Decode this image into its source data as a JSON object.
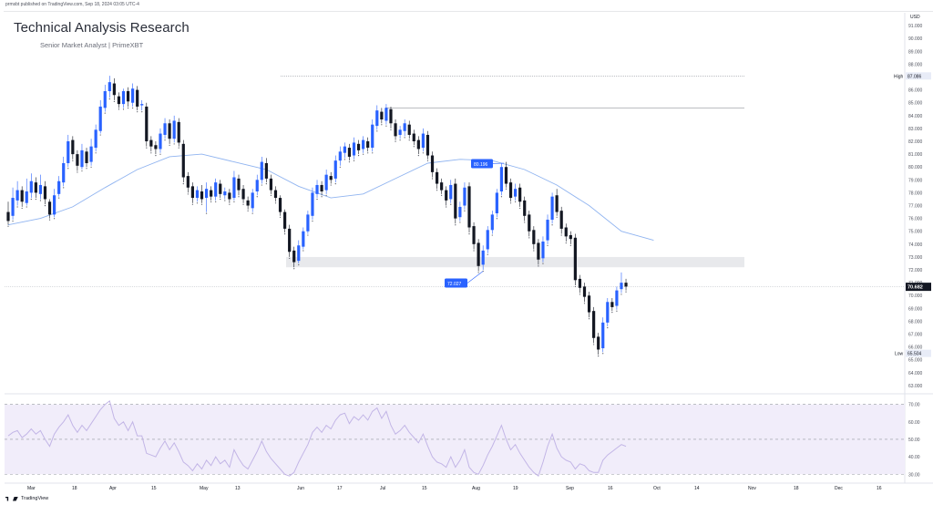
{
  "header": {
    "published": "prmsbt published on TradingView.com, Sep 18, 2024 03:05 UTC-4",
    "title": "Technical Analysis Research",
    "subtitle": "Senior Market Analyst | PrimeXBT",
    "currency": "USD"
  },
  "footer": {
    "brand": "TradingView"
  },
  "colors": {
    "bull": "#2962ff",
    "bear": "#131722",
    "ma": "#90b4f0",
    "rsi": "#c2b5e6",
    "rsi_band": "#f1edfa",
    "zone": "#e8e9ec",
    "label_bg": "#2962ff"
  },
  "chart_data": {
    "type": "candlestick",
    "price_axis": {
      "ticks": [
        "91.000",
        "90.000",
        "89.000",
        "88.000",
        "87.000",
        "86.000",
        "85.000",
        "84.000",
        "83.000",
        "82.000",
        "81.000",
        "80.000",
        "79.000",
        "78.000",
        "77.000",
        "76.000",
        "75.000",
        "74.000",
        "73.000",
        "72.000",
        "71.000",
        "70.000",
        "69.000",
        "68.000",
        "67.000",
        "66.000",
        "65.000",
        "64.000",
        "63.000"
      ],
      "ylim": [
        62.5,
        92.0
      ]
    },
    "time_axis": {
      "labels": [
        "Mar",
        "18",
        "Apr",
        "15",
        "May",
        "13",
        "Jun",
        "17",
        "Jul",
        "15",
        "Aug",
        "19",
        "Sep",
        "16",
        "Oct",
        "14",
        "Nov",
        "18",
        "Dec",
        "16"
      ]
    },
    "levels": {
      "high": {
        "label": "High",
        "value": "87.086",
        "price": 87.086
      },
      "low": {
        "label": "Low",
        "value": "65.504",
        "price": 65.504
      },
      "current": {
        "value": "70.682",
        "price": 70.682
      },
      "resistance": 84.6
    },
    "zone": {
      "from": 72.2,
      "to": 73.0
    },
    "annotations": [
      {
        "text": "80.196",
        "price": 80.196
      },
      {
        "text": "72.027",
        "price": 72.027
      }
    ],
    "candles": [
      [
        0,
        76.5,
        75.8,
        77.3,
        75.5
      ],
      [
        1,
        76.2,
        77.6,
        78.4,
        75.9
      ],
      [
        2,
        77.4,
        78.2,
        78.9,
        77.0
      ],
      [
        3,
        78.2,
        77.3,
        78.5,
        76.9
      ],
      [
        4,
        77.2,
        78.1,
        79.1,
        77.0
      ],
      [
        5,
        78.0,
        78.9,
        79.5,
        77.6
      ],
      [
        6,
        78.8,
        78.0,
        79.2,
        77.6
      ],
      [
        7,
        77.9,
        78.6,
        79.4,
        77.5
      ],
      [
        8,
        78.5,
        77.5,
        78.9,
        77.1
      ],
      [
        9,
        77.3,
        76.3,
        77.5,
        76.0
      ],
      [
        10,
        76.3,
        77.8,
        78.3,
        76.1
      ],
      [
        11,
        77.9,
        78.9,
        79.3,
        77.7
      ],
      [
        12,
        78.8,
        80.3,
        80.8,
        78.5
      ],
      [
        13,
        80.3,
        82.0,
        82.5,
        80.0
      ],
      [
        14,
        82.1,
        81.0,
        82.4,
        80.6
      ],
      [
        15,
        81.0,
        80.1,
        81.3,
        79.7
      ],
      [
        16,
        80.0,
        81.3,
        81.8,
        79.8
      ],
      [
        17,
        81.2,
        80.3,
        81.5,
        80.0
      ],
      [
        18,
        80.4,
        81.6,
        82.2,
        80.1
      ],
      [
        19,
        81.5,
        82.9,
        83.3,
        81.2
      ],
      [
        20,
        82.8,
        84.7,
        85.2,
        82.6
      ],
      [
        21,
        84.6,
        85.9,
        86.4,
        84.3
      ],
      [
        22,
        85.9,
        86.6,
        87.1,
        85.4
      ],
      [
        23,
        86.5,
        85.6,
        86.9,
        85.2
      ],
      [
        24,
        85.5,
        84.9,
        85.8,
        84.6
      ],
      [
        25,
        84.9,
        85.9,
        86.1,
        84.6
      ],
      [
        26,
        85.9,
        85.1,
        86.2,
        84.7
      ],
      [
        27,
        85.0,
        86.1,
        86.5,
        84.7
      ],
      [
        28,
        86.0,
        84.7,
        86.3,
        84.4
      ],
      [
        29,
        84.8,
        84.9,
        85.2,
        84.4
      ],
      [
        30,
        84.7,
        82.0,
        85.0,
        81.6
      ],
      [
        31,
        82.1,
        81.6,
        82.4,
        81.2
      ],
      [
        32,
        81.7,
        81.4,
        82.0,
        81.0
      ],
      [
        33,
        81.4,
        82.6,
        83.0,
        81.1
      ],
      [
        34,
        82.5,
        83.4,
        83.8,
        82.2
      ],
      [
        35,
        83.4,
        82.2,
        83.7,
        81.8
      ],
      [
        36,
        82.2,
        83.6,
        84.0,
        81.9
      ],
      [
        37,
        83.5,
        81.9,
        83.8,
        81.6
      ],
      [
        38,
        81.8,
        79.2,
        82.1,
        78.8
      ],
      [
        39,
        79.3,
        78.4,
        79.6,
        78.0
      ],
      [
        40,
        78.5,
        77.6,
        78.8,
        77.2
      ],
      [
        41,
        77.6,
        78.2,
        78.5,
        77.3
      ],
      [
        42,
        78.1,
        77.5,
        78.6,
        77.2
      ],
      [
        43,
        77.6,
        78.3,
        78.8,
        76.5
      ],
      [
        44,
        78.2,
        77.7,
        78.5,
        77.4
      ],
      [
        45,
        77.7,
        78.8,
        79.1,
        77.4
      ],
      [
        46,
        78.7,
        77.9,
        79.0,
        77.6
      ],
      [
        47,
        77.8,
        78.1,
        78.4,
        77.5
      ],
      [
        48,
        78.0,
        77.5,
        78.3,
        77.2
      ],
      [
        49,
        77.6,
        79.2,
        79.7,
        77.4
      ],
      [
        50,
        79.1,
        78.2,
        79.4,
        77.8
      ],
      [
        51,
        78.3,
        77.5,
        78.6,
        77.2
      ],
      [
        52,
        77.4,
        77.0,
        77.7,
        76.7
      ],
      [
        53,
        76.8,
        78.0,
        78.3,
        76.5
      ],
      [
        54,
        78.1,
        79.0,
        79.4,
        77.8
      ],
      [
        55,
        79.0,
        80.4,
        80.8,
        78.7
      ],
      [
        56,
        80.3,
        79.1,
        80.7,
        78.8
      ],
      [
        57,
        79.1,
        78.2,
        79.4,
        77.9
      ],
      [
        58,
        78.2,
        77.6,
        78.5,
        77.3
      ],
      [
        59,
        77.6,
        76.5,
        77.8,
        76.2
      ],
      [
        60,
        76.5,
        75.2,
        76.7,
        74.9
      ],
      [
        61,
        75.2,
        73.4,
        75.5,
        73.0
      ],
      [
        62,
        73.5,
        72.6,
        73.8,
        72.2
      ],
      [
        63,
        72.7,
        73.9,
        74.3,
        72.5
      ],
      [
        64,
        73.8,
        75.0,
        75.3,
        73.6
      ],
      [
        65,
        75.0,
        76.3,
        76.6,
        74.8
      ],
      [
        66,
        76.2,
        78.0,
        78.4,
        75.9
      ],
      [
        67,
        77.9,
        78.6,
        79.0,
        77.6
      ],
      [
        68,
        78.6,
        78.1,
        78.9,
        77.8
      ],
      [
        69,
        78.2,
        79.4,
        79.8,
        77.9
      ],
      [
        70,
        79.3,
        79.0,
        79.6,
        78.7
      ],
      [
        71,
        79.1,
        80.5,
        80.9,
        78.8
      ],
      [
        72,
        80.5,
        81.2,
        81.6,
        80.1
      ],
      [
        73,
        81.1,
        81.6,
        81.9,
        80.7
      ],
      [
        74,
        81.5,
        80.8,
        81.8,
        80.5
      ],
      [
        75,
        80.9,
        81.9,
        82.3,
        80.6
      ],
      [
        76,
        81.8,
        81.3,
        82.1,
        81.0
      ],
      [
        77,
        81.4,
        82.1,
        82.4,
        81.1
      ],
      [
        78,
        82.0,
        81.5,
        82.3,
        81.2
      ],
      [
        79,
        81.5,
        83.3,
        83.7,
        81.2
      ],
      [
        80,
        83.2,
        84.4,
        84.8,
        82.9
      ],
      [
        81,
        84.3,
        83.7,
        84.6,
        83.4
      ],
      [
        82,
        83.6,
        84.6,
        84.9,
        83.3
      ],
      [
        83,
        84.5,
        83.4,
        84.7,
        83.0
      ],
      [
        84,
        83.4,
        82.4,
        83.7,
        82.1
      ],
      [
        85,
        82.5,
        82.9,
        83.2,
        82.2
      ],
      [
        86,
        82.8,
        83.4,
        83.7,
        82.4
      ],
      [
        87,
        83.3,
        82.5,
        83.6,
        82.2
      ],
      [
        88,
        82.6,
        82.0,
        82.9,
        81.7
      ],
      [
        89,
        82.1,
        81.4,
        82.4,
        81.0
      ],
      [
        90,
        81.5,
        82.6,
        83.0,
        81.2
      ],
      [
        91,
        82.5,
        80.9,
        82.8,
        80.6
      ],
      [
        92,
        80.9,
        79.6,
        81.2,
        79.2
      ],
      [
        93,
        79.6,
        78.7,
        79.9,
        78.3
      ],
      [
        94,
        78.8,
        78.2,
        79.1,
        77.9
      ],
      [
        95,
        78.2,
        77.4,
        78.5,
        77.0
      ],
      [
        96,
        77.5,
        78.6,
        79.0,
        77.2
      ],
      [
        97,
        78.7,
        76.0,
        79.1,
        75.6
      ],
      [
        98,
        76.1,
        76.9,
        77.3,
        75.8
      ],
      [
        99,
        77.0,
        78.4,
        78.8,
        76.7
      ],
      [
        100,
        78.5,
        75.3,
        78.8,
        74.9
      ],
      [
        101,
        75.4,
        74.0,
        75.7,
        73.6
      ],
      [
        102,
        74.1,
        72.3,
        74.4,
        71.9
      ],
      [
        103,
        72.4,
        73.5,
        73.9,
        72.0
      ],
      [
        104,
        73.6,
        75.1,
        75.4,
        73.3
      ],
      [
        105,
        75.1,
        76.3,
        76.6,
        74.8
      ],
      [
        106,
        76.4,
        78.0,
        78.3,
        76.1
      ],
      [
        107,
        78.1,
        80.0,
        80.3,
        77.8
      ],
      [
        108,
        80.0,
        78.7,
        80.4,
        78.4
      ],
      [
        109,
        78.8,
        77.6,
        79.1,
        77.3
      ],
      [
        110,
        77.7,
        78.3,
        78.7,
        77.4
      ],
      [
        111,
        78.4,
        77.3,
        78.7,
        76.9
      ],
      [
        112,
        77.4,
        76.2,
        77.7,
        75.8
      ],
      [
        113,
        76.3,
        75.0,
        76.6,
        74.6
      ],
      [
        114,
        75.1,
        74.0,
        75.4,
        73.6
      ],
      [
        115,
        74.1,
        72.8,
        74.4,
        72.4
      ],
      [
        116,
        72.9,
        74.2,
        74.6,
        72.6
      ],
      [
        117,
        74.3,
        75.9,
        76.3,
        74.0
      ],
      [
        118,
        75.9,
        77.7,
        78.0,
        75.6
      ],
      [
        119,
        77.8,
        76.5,
        78.3,
        76.2
      ],
      [
        120,
        76.6,
        75.2,
        76.9,
        74.8
      ],
      [
        121,
        75.3,
        74.6,
        75.6,
        74.2
      ],
      [
        122,
        74.7,
        74.4,
        75.0,
        74.0
      ],
      [
        123,
        74.5,
        71.2,
        74.8,
        70.8
      ],
      [
        124,
        71.3,
        70.6,
        71.6,
        70.2
      ],
      [
        125,
        70.7,
        69.9,
        71.0,
        69.5
      ],
      [
        126,
        70.0,
        68.7,
        70.3,
        68.3
      ],
      [
        127,
        68.8,
        66.7,
        69.1,
        66.3
      ],
      [
        128,
        66.8,
        65.8,
        67.1,
        65.4
      ],
      [
        129,
        65.9,
        67.9,
        68.3,
        65.6
      ],
      [
        130,
        67.9,
        69.5,
        69.8,
        67.6
      ],
      [
        131,
        69.5,
        69.1,
        69.8,
        68.8
      ],
      [
        132,
        69.2,
        70.4,
        70.7,
        68.9
      ],
      [
        133,
        70.5,
        71.0,
        71.8,
        70.2
      ],
      [
        134,
        71.0,
        70.7,
        71.3,
        70.4
      ]
    ],
    "moving_average": [
      [
        0,
        75.5
      ],
      [
        7,
        76.0
      ],
      [
        14,
        76.9
      ],
      [
        21,
        78.4
      ],
      [
        28,
        79.8
      ],
      [
        35,
        80.8
      ],
      [
        42,
        81.0
      ],
      [
        49,
        80.4
      ],
      [
        56,
        79.8
      ],
      [
        63,
        78.5
      ],
      [
        70,
        77.6
      ],
      [
        77,
        77.9
      ],
      [
        84,
        79.1
      ],
      [
        91,
        80.3
      ],
      [
        98,
        80.6
      ],
      [
        105,
        80.5
      ],
      [
        112,
        79.8
      ],
      [
        119,
        78.6
      ],
      [
        126,
        77.0
      ],
      [
        133,
        75.0
      ],
      [
        140,
        74.3
      ]
    ],
    "rsi": {
      "yticks": [
        "70.00",
        "60.00",
        "50.00",
        "40.00",
        "30.00"
      ],
      "ylim": [
        27,
        74
      ],
      "band": [
        30,
        70
      ],
      "values": [
        52,
        54,
        55,
        51,
        53,
        56,
        53,
        55,
        50,
        46,
        53,
        57,
        60,
        64,
        58,
        54,
        58,
        55,
        59,
        63,
        67,
        70,
        72,
        62,
        58,
        60,
        55,
        60,
        52,
        52,
        42,
        41,
        40,
        45,
        49,
        44,
        48,
        43,
        37,
        35,
        32,
        36,
        33,
        38,
        35,
        40,
        36,
        38,
        34,
        44,
        39,
        35,
        33,
        38,
        43,
        49,
        43,
        39,
        36,
        33,
        30,
        29,
        31,
        37,
        42,
        47,
        54,
        57,
        54,
        58,
        56,
        61,
        64,
        65,
        59,
        63,
        61,
        64,
        61,
        66,
        68,
        62,
        66,
        58,
        53,
        55,
        58,
        54,
        51,
        48,
        53,
        46,
        40,
        37,
        36,
        34,
        40,
        34,
        38,
        44,
        34,
        31,
        30,
        35,
        41,
        46,
        52,
        58,
        50,
        44,
        47,
        42,
        38,
        34,
        31,
        29,
        37,
        46,
        53,
        45,
        40,
        38,
        37,
        33,
        36,
        35,
        32,
        31,
        31,
        38,
        41,
        43,
        45,
        47,
        46
      ]
    }
  }
}
